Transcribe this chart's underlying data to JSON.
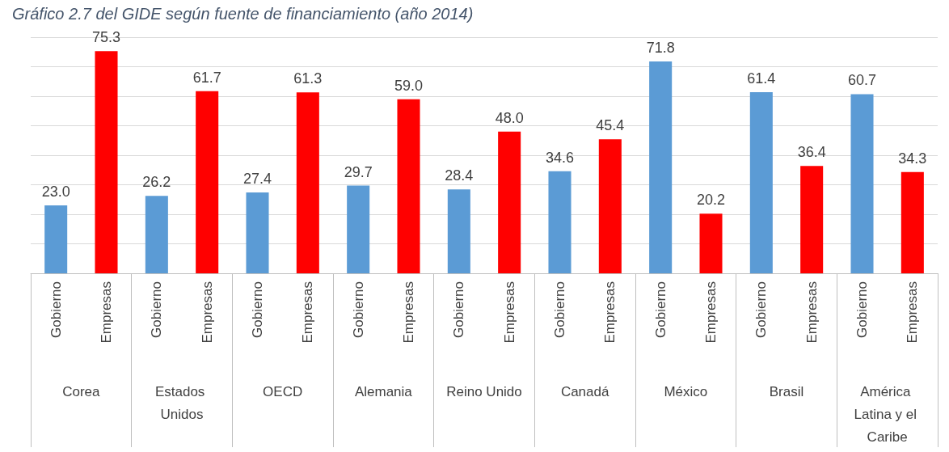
{
  "chart_data": {
    "type": "bar",
    "title": "Gráfico 2.7 del GIDE según fuente de financiamiento (año 2014)",
    "categories": [
      "Corea",
      "Estados Unidos",
      "OECD",
      "Alemania",
      "Reino Unido",
      "Canadá",
      "México",
      "Brasil",
      "América Latina y el Caribe"
    ],
    "series": [
      {
        "name": "Gobierno",
        "color": "#5b9bd5",
        "values": [
          23.0,
          26.2,
          27.4,
          29.7,
          28.4,
          34.6,
          71.8,
          61.4,
          60.7
        ],
        "value_labels": [
          "23.0",
          "26.2",
          "27.4",
          "29.7",
          "28.4",
          "34.6",
          "71.8",
          "61.4",
          "60.7"
        ]
      },
      {
        "name": "Empresas",
        "color": "#ff0000",
        "values": [
          75.3,
          61.7,
          61.3,
          59.0,
          48.0,
          45.4,
          20.2,
          36.4,
          34.3
        ],
        "value_labels": [
          "75.3",
          "61.7",
          "61.3",
          "59.0",
          "48.0",
          "45.4",
          "20.2",
          "36.4",
          "34.3"
        ]
      }
    ],
    "ylim": [
      0,
      80
    ],
    "yticks": [
      {
        "value": 0,
        "label": null
      },
      {
        "value": 10,
        "label": null
      },
      {
        "value": 20,
        "label": null
      },
      {
        "value": 30,
        "label": null
      },
      {
        "value": 40,
        "label": null
      },
      {
        "value": 50,
        "label": null
      },
      {
        "value": 60,
        "label": null
      },
      {
        "value": 70,
        "label": null
      },
      {
        "value": 80,
        "label": null
      }
    ],
    "grid": "y",
    "tick_labels": "x",
    "legend": false
  }
}
